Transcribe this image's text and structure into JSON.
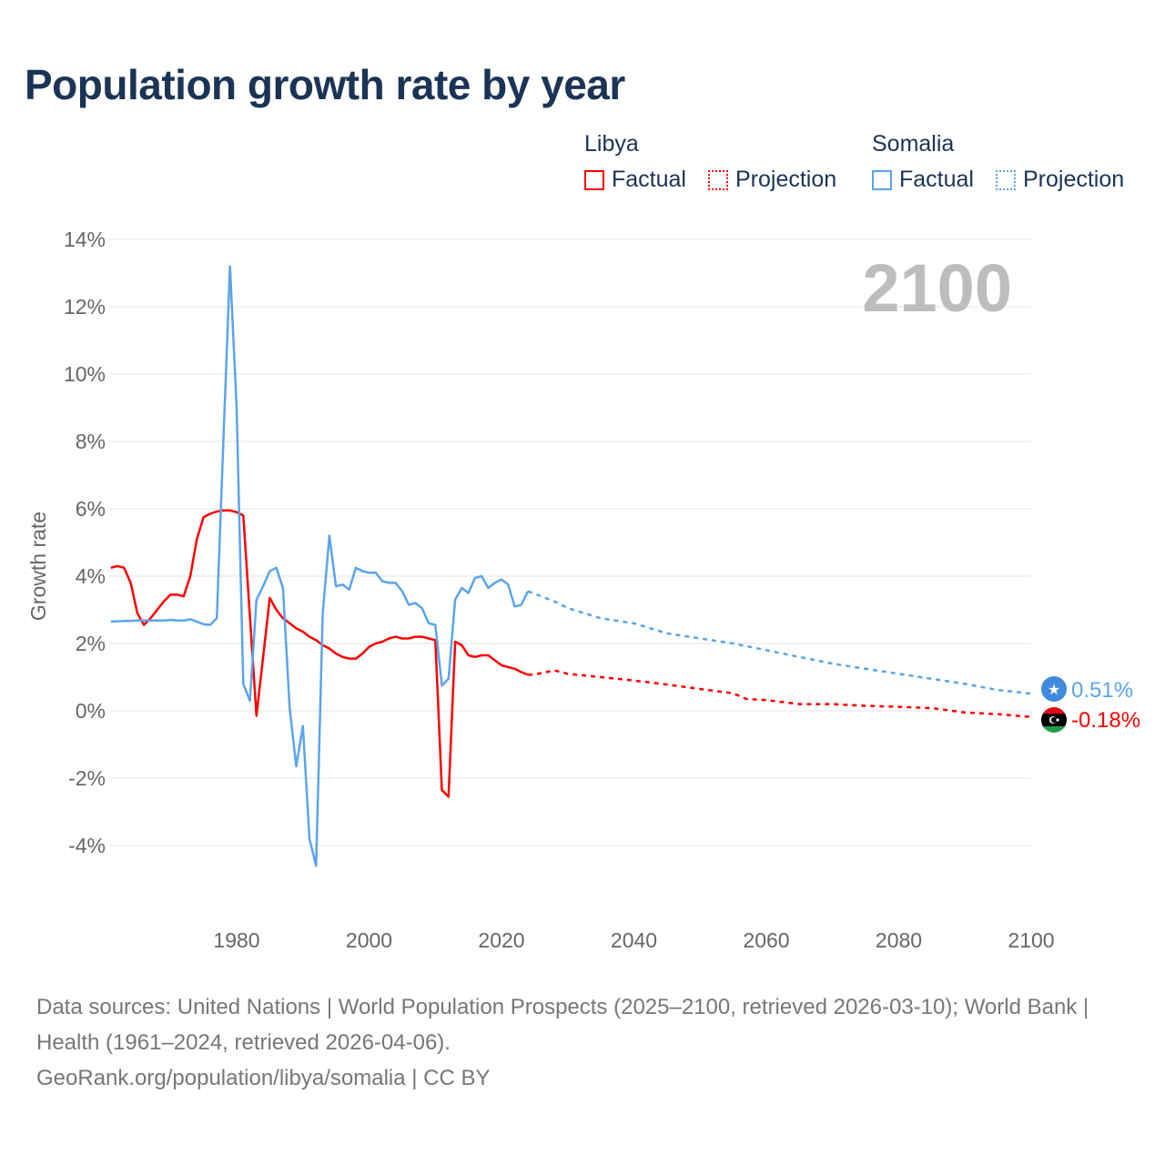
{
  "title": "Population growth rate by year",
  "legend": {
    "groups": [
      {
        "name": "Libya",
        "color": "#ff0000",
        "items": [
          "Factual",
          "Projection"
        ]
      },
      {
        "name": "Somalia",
        "color": "#5ba4ec",
        "items": [
          "Factual",
          "Projection"
        ]
      }
    ]
  },
  "footer": {
    "sources": "Data sources: United Nations | World Population Prospects (2025–2100, retrieved 2026-03-10); World Bank | Health (1961–2024, retrieved 2026-04-06).",
    "credit": "GeoRank.org/population/libya/somalia | CC BY"
  },
  "chart_data": {
    "type": "line",
    "title": "Population growth rate by year",
    "ylabel": "Growth rate",
    "xlabel": "",
    "year_overlay": "2100",
    "xlim": [
      1961,
      2100
    ],
    "ylim": [
      -5,
      14
    ],
    "x_ticks": [
      1980,
      2000,
      2020,
      2040,
      2060,
      2080,
      2100
    ],
    "y_ticks": [
      -4,
      -2,
      0,
      2,
      4,
      6,
      8,
      10,
      12,
      14
    ],
    "y_tick_labels": [
      "-4%",
      "-2%",
      "0%",
      "2%",
      "4%",
      "6%",
      "8%",
      "10%",
      "12%",
      "14%"
    ],
    "grid": true,
    "series": [
      {
        "name": "Libya",
        "color": "#ff0000",
        "end_label": "-0.18%",
        "factual_start_year": 1961,
        "factual": [
          4.25,
          4.3,
          4.25,
          3.8,
          2.9,
          2.55,
          2.75,
          3.0,
          3.25,
          3.45,
          3.45,
          3.4,
          4.0,
          5.1,
          5.75,
          5.85,
          5.92,
          5.95,
          5.95,
          5.9,
          5.8,
          2.8,
          -0.15,
          1.6,
          3.35,
          3.0,
          2.75,
          2.6,
          2.45,
          2.35,
          2.2,
          2.1,
          1.95,
          1.85,
          1.7,
          1.6,
          1.55,
          1.55,
          1.7,
          1.9,
          2.0,
          2.05,
          2.15,
          2.2,
          2.15,
          2.15,
          2.2,
          2.2,
          2.15,
          2.1,
          -2.35,
          -2.55,
          2.05,
          1.95,
          1.65,
          1.6,
          1.65,
          1.65,
          1.5,
          1.35,
          1.3,
          1.25,
          1.15,
          1.07
        ],
        "projection": [
          [
            2024,
            1.07
          ],
          [
            2025,
            1.08
          ],
          [
            2028,
            1.2
          ],
          [
            2030,
            1.1
          ],
          [
            2035,
            1.0
          ],
          [
            2040,
            0.9
          ],
          [
            2045,
            0.78
          ],
          [
            2050,
            0.65
          ],
          [
            2055,
            0.52
          ],
          [
            2057,
            0.35
          ],
          [
            2060,
            0.32
          ],
          [
            2065,
            0.2
          ],
          [
            2070,
            0.2
          ],
          [
            2075,
            0.15
          ],
          [
            2080,
            0.12
          ],
          [
            2085,
            0.08
          ],
          [
            2090,
            -0.05
          ],
          [
            2095,
            -0.1
          ],
          [
            2100,
            -0.18
          ]
        ]
      },
      {
        "name": "Somalia",
        "color": "#5ba4ec",
        "end_label": "0.51%",
        "factual_start_year": 1961,
        "factual": [
          2.65,
          2.66,
          2.67,
          2.67,
          2.68,
          2.68,
          2.68,
          2.68,
          2.68,
          2.7,
          2.68,
          2.68,
          2.72,
          2.65,
          2.57,
          2.55,
          2.75,
          8.0,
          13.2,
          9.0,
          0.8,
          0.3,
          3.3,
          3.7,
          4.15,
          4.25,
          3.65,
          0.1,
          -1.65,
          -0.45,
          -3.8,
          -4.6,
          2.9,
          5.2,
          3.7,
          3.75,
          3.6,
          4.25,
          4.15,
          4.1,
          4.1,
          3.85,
          3.8,
          3.8,
          3.55,
          3.15,
          3.2,
          3.05,
          2.6,
          2.55,
          0.75,
          0.95,
          3.3,
          3.65,
          3.5,
          3.95,
          4.0,
          3.65,
          3.8,
          3.9,
          3.75,
          3.1,
          3.15,
          3.55
        ],
        "projection": [
          [
            2024,
            3.55
          ],
          [
            2026,
            3.4
          ],
          [
            2028,
            3.25
          ],
          [
            2030,
            3.05
          ],
          [
            2035,
            2.75
          ],
          [
            2040,
            2.6
          ],
          [
            2045,
            2.3
          ],
          [
            2050,
            2.15
          ],
          [
            2055,
            2.0
          ],
          [
            2060,
            1.8
          ],
          [
            2065,
            1.6
          ],
          [
            2070,
            1.4
          ],
          [
            2075,
            1.25
          ],
          [
            2080,
            1.1
          ],
          [
            2085,
            0.95
          ],
          [
            2090,
            0.8
          ],
          [
            2095,
            0.62
          ],
          [
            2100,
            0.51
          ]
        ]
      }
    ]
  }
}
